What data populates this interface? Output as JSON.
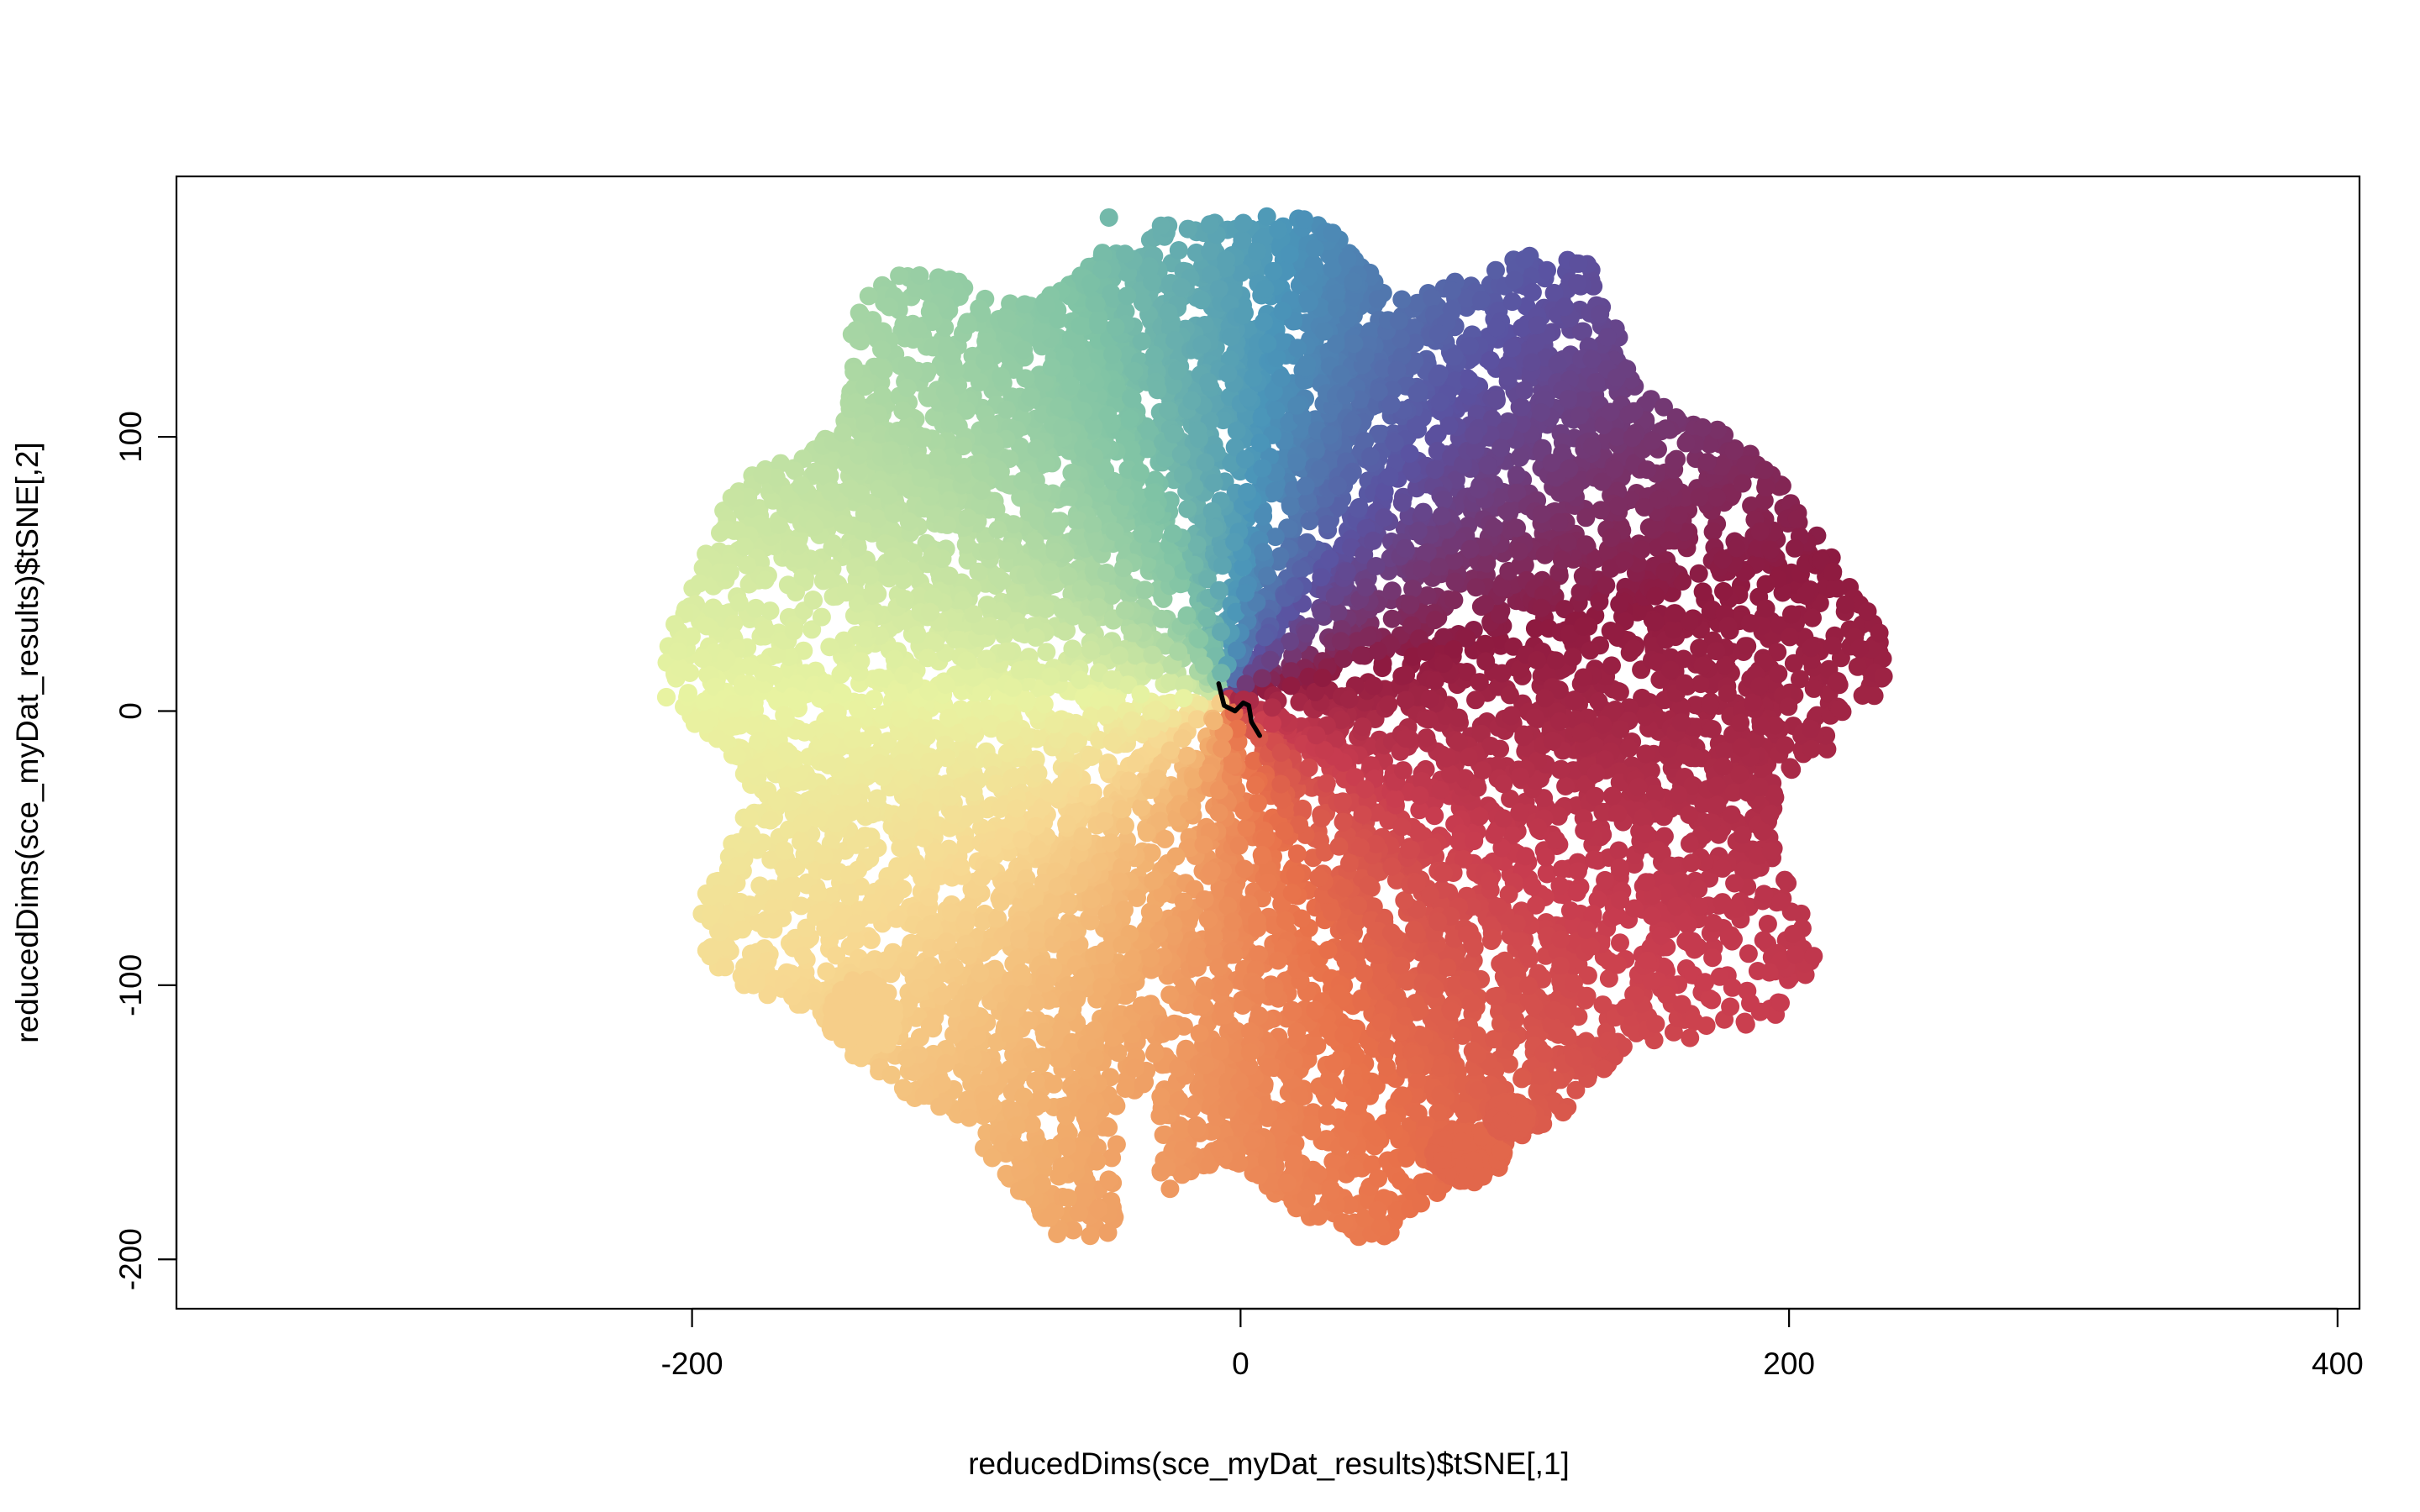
{
  "chart_data": {
    "type": "scatter",
    "xlabel": "reducedDims(sce_myDat_results)$tSNE[,1]",
    "ylabel": "reducedDims(sce_myDat_results)$tSNE[,2]",
    "xlim": [
      -388,
      408
    ],
    "ylim": [
      -218,
      195
    ],
    "x_ticks": [
      -200,
      0,
      200,
      400
    ],
    "y_ticks": [
      -200,
      -100,
      0,
      100
    ],
    "x_tick_labels": [
      "-200",
      "0",
      "200",
      "400"
    ],
    "y_tick_labels": [
      "-200",
      "-100",
      "0",
      "100"
    ],
    "grid": false,
    "legend": "none",
    "color_scale": "Spectral (continuous, by angle around center)",
    "point_cloud": {
      "approx_x_range": [
        -210,
        230
      ],
      "approx_y_range": [
        -205,
        180
      ],
      "center": [
        -5,
        5
      ]
    },
    "sectors": [
      {
        "angle_from_deg": -10,
        "angle_to_deg": 35,
        "color": "#8E1A40"
      },
      {
        "angle_from_deg": -50,
        "angle_to_deg": -10,
        "color": "#C83C4F"
      },
      {
        "angle_from_deg": -90,
        "angle_to_deg": -50,
        "color": "#E8714A"
      },
      {
        "angle_from_deg": -130,
        "angle_to_deg": -90,
        "color": "#F1AB6B"
      },
      {
        "angle_from_deg": -165,
        "angle_to_deg": -130,
        "color": "#F7D992"
      },
      {
        "angle_from_deg": 165,
        "angle_to_deg": 195,
        "color": "#E8F3A1"
      },
      {
        "angle_from_deg": 125,
        "angle_to_deg": 165,
        "color": "#B5DCA3"
      },
      {
        "angle_from_deg": 95,
        "angle_to_deg": 125,
        "color": "#7FC3A5"
      },
      {
        "angle_from_deg": 70,
        "angle_to_deg": 95,
        "color": "#4A95B9"
      },
      {
        "angle_from_deg": 35,
        "angle_to_deg": 70,
        "color": "#5A52A1"
      }
    ],
    "outlier_points": [
      {
        "x": -48,
        "y": 180
      },
      {
        "x": -29,
        "y": 177
      },
      {
        "x": 1,
        "y": 178
      },
      {
        "x": 183,
        "y": 83
      },
      {
        "x": 155,
        "y": 103
      }
    ],
    "satellite_clusters": [
      {
        "x": -138,
        "y": -112,
        "rx": 12,
        "ry": 15
      },
      {
        "x": 83,
        "y": -162,
        "rx": 13,
        "ry": 10
      },
      {
        "x": 98,
        "y": -148,
        "rx": 7,
        "ry": 6
      }
    ],
    "trajectory": [
      [
        -8,
        10
      ],
      [
        -6,
        2
      ],
      [
        -2,
        0
      ],
      [
        1,
        3
      ],
      [
        3,
        2
      ],
      [
        4,
        -4
      ],
      [
        7,
        -9
      ]
    ]
  }
}
